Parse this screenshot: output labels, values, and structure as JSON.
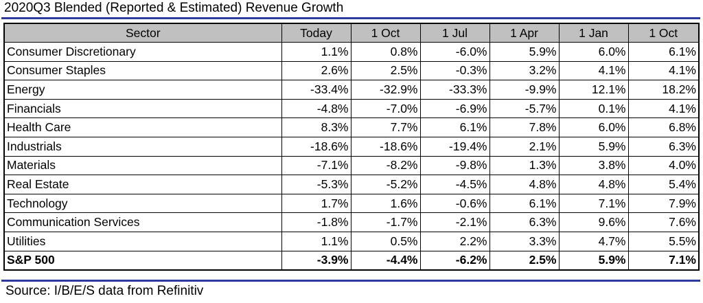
{
  "title": "2020Q3 Blended (Reported & Estimated) Revenue Growth",
  "source": "Source: I/B/E/S data from Refinitiv",
  "table": {
    "headers": [
      "Sector",
      "Today",
      "1 Oct",
      "1 Jul",
      "1 Apr",
      "1 Jan",
      "1 Oct"
    ],
    "rows": [
      {
        "sector": "Consumer Discretionary",
        "values": [
          "1.1%",
          "0.8%",
          "-6.0%",
          "5.9%",
          "6.0%",
          "6.1%"
        ]
      },
      {
        "sector": "Consumer Staples",
        "values": [
          "2.6%",
          "2.5%",
          "-0.3%",
          "3.2%",
          "4.1%",
          "4.1%"
        ]
      },
      {
        "sector": "Energy",
        "values": [
          "-33.4%",
          "-32.9%",
          "-33.3%",
          "-9.9%",
          "12.1%",
          "18.2%"
        ]
      },
      {
        "sector": "Financials",
        "values": [
          "-4.8%",
          "-7.0%",
          "-6.9%",
          "-5.7%",
          "0.1%",
          "4.1%"
        ]
      },
      {
        "sector": "Health Care",
        "values": [
          "8.3%",
          "7.7%",
          "6.1%",
          "7.8%",
          "6.0%",
          "6.8%"
        ]
      },
      {
        "sector": "Industrials",
        "values": [
          "-18.6%",
          "-18.6%",
          "-19.4%",
          "2.1%",
          "5.9%",
          "6.3%"
        ]
      },
      {
        "sector": "Materials",
        "values": [
          "-7.1%",
          "-8.2%",
          "-9.8%",
          "1.3%",
          "3.8%",
          "4.0%"
        ]
      },
      {
        "sector": "Real Estate",
        "values": [
          "-5.3%",
          "-5.2%",
          "-4.5%",
          "4.8%",
          "4.8%",
          "5.4%"
        ]
      },
      {
        "sector": "Technology",
        "values": [
          "1.7%",
          "1.6%",
          "-0.6%",
          "6.1%",
          "7.1%",
          "7.9%"
        ]
      },
      {
        "sector": "Communication Services",
        "values": [
          "-1.8%",
          "-1.7%",
          "-2.1%",
          "6.3%",
          "9.6%",
          "7.6%"
        ]
      },
      {
        "sector": "Utilities",
        "values": [
          "1.1%",
          "0.5%",
          "2.2%",
          "3.3%",
          "4.7%",
          "5.5%"
        ]
      }
    ],
    "total": {
      "sector": "S&P 500",
      "values": [
        "-3.9%",
        "-4.4%",
        "-6.2%",
        "2.5%",
        "5.9%",
        "7.1%"
      ]
    }
  },
  "colors": {
    "header_background": "#c0c0c0",
    "rule": "#2b3a9c"
  }
}
